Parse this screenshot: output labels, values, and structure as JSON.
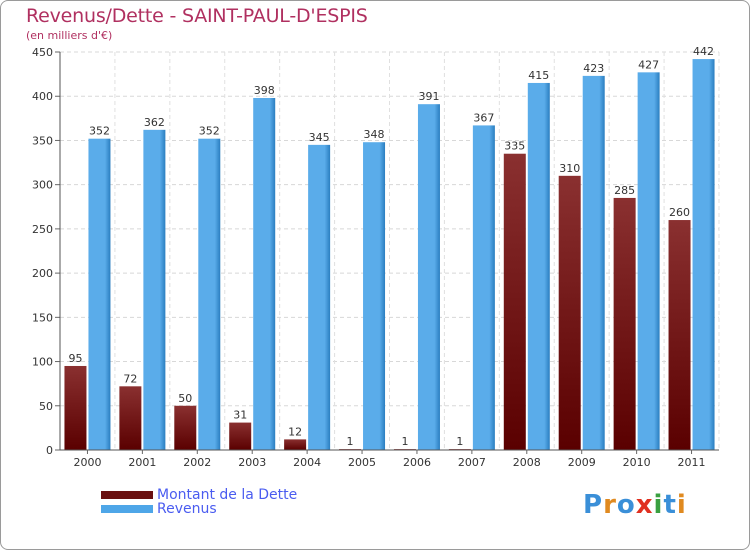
{
  "title": "Revenus/Dette - SAINT-PAUL-D'ESPIS",
  "subtitle": "(en milliers d'€)",
  "colors": {
    "dette_top": "#8a3030",
    "dette_bottom": "#5a0000",
    "revenus": "#5aacea",
    "revenus_dark": "#2a7ec0",
    "title": "#b03060",
    "legend_text": "#4a5cf0"
  },
  "legend": [
    {
      "label": "Montant de la Dette",
      "color": "#6a1010"
    },
    {
      "label": "Revenus",
      "color": "#4ea6e8"
    }
  ],
  "logo": {
    "letters": [
      "P",
      "r",
      "o",
      "x",
      "i",
      "t",
      "i"
    ],
    "letter_colors": [
      "#3a8fd8",
      "#e08a20",
      "#3a8fd8",
      "#e03020",
      "#3aa040",
      "#3a8fd8",
      "#e08a20"
    ]
  },
  "chart_data": {
    "type": "bar",
    "categories": [
      "2000",
      "2001",
      "2002",
      "2003",
      "2004",
      "2005",
      "2006",
      "2007",
      "2008",
      "2009",
      "2010",
      "2011"
    ],
    "series": [
      {
        "name": "Montant de la Dette",
        "values": [
          95,
          72,
          50,
          31,
          12,
          1,
          1,
          1,
          335,
          310,
          285,
          260
        ]
      },
      {
        "name": "Revenus",
        "values": [
          352,
          362,
          352,
          398,
          345,
          348,
          391,
          367,
          415,
          423,
          427,
          442
        ]
      }
    ],
    "ylim": [
      0,
      450
    ],
    "yticks": [
      0,
      50,
      100,
      150,
      200,
      250,
      300,
      350,
      400,
      450
    ],
    "grid": true
  }
}
